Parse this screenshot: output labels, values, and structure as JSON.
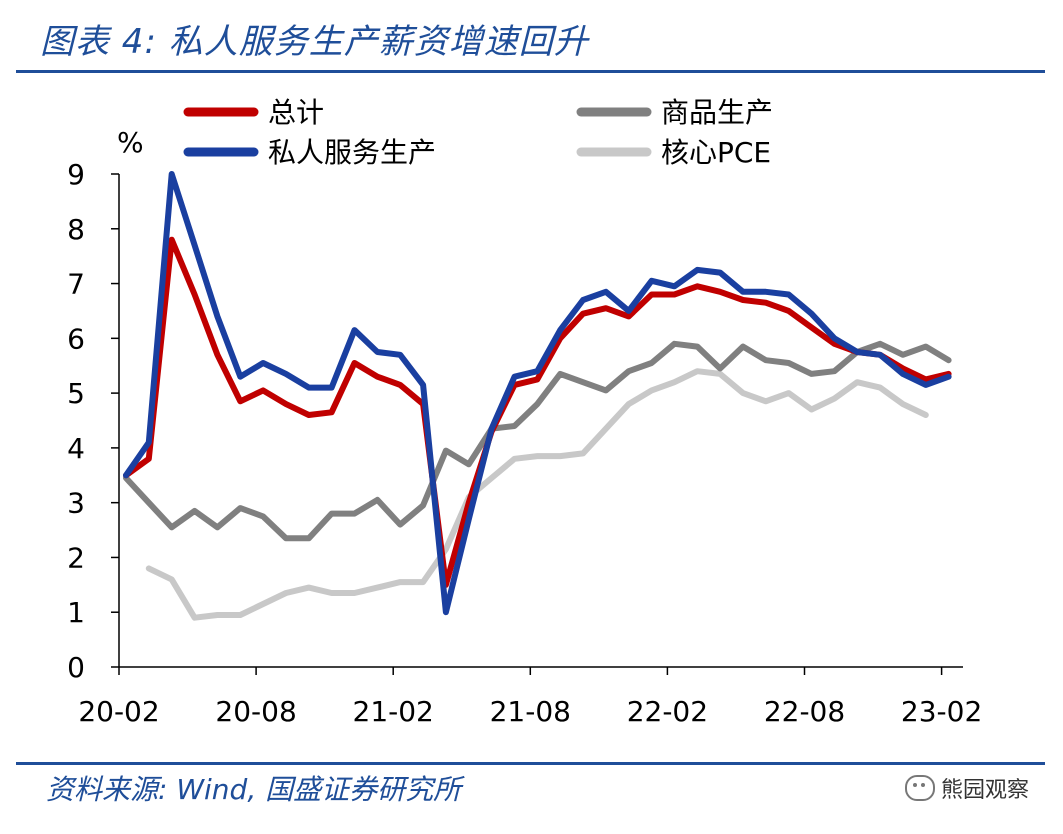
{
  "header": {
    "title": "图表 4:  私人服务生产薪资增速回升"
  },
  "footer": {
    "source": "资料来源:  Wind,  国盛证券研究所",
    "watermark": "熊园观察"
  },
  "chart_data": {
    "type": "line",
    "ylabel": "%",
    "ylim": [
      0,
      9
    ],
    "yticks": [
      "0",
      "1",
      "2",
      "3",
      "4",
      "5",
      "6",
      "7",
      "8",
      "9"
    ],
    "xticks": [
      {
        "label": "20-02",
        "index": 0
      },
      {
        "label": "20-08",
        "index": 6
      },
      {
        "label": "21-02",
        "index": 12
      },
      {
        "label": "21-08",
        "index": 18
      },
      {
        "label": "22-02",
        "index": 24
      },
      {
        "label": "22-08",
        "index": 30
      },
      {
        "label": "23-02",
        "index": 36
      }
    ],
    "grid": false,
    "legend_position": "top",
    "series": [
      {
        "name": "总计",
        "color": "#c00000",
        "values": [
          3.5,
          3.8,
          7.8,
          6.8,
          5.7,
          4.85,
          5.05,
          4.8,
          4.6,
          4.65,
          5.55,
          5.3,
          5.15,
          4.8,
          1.5,
          3.0,
          4.3,
          5.15,
          5.25,
          6.0,
          6.45,
          6.55,
          6.4,
          6.8,
          6.8,
          6.95,
          6.85,
          6.7,
          6.65,
          6.5,
          6.2,
          5.9,
          5.75,
          5.7,
          5.45,
          5.25,
          5.35
        ]
      },
      {
        "name": "商品生产",
        "color": "#808080",
        "values": [
          3.45,
          3.0,
          2.55,
          2.85,
          2.55,
          2.9,
          2.75,
          2.35,
          2.35,
          2.8,
          2.8,
          3.05,
          2.6,
          2.95,
          3.95,
          3.7,
          4.35,
          4.4,
          4.8,
          5.35,
          5.2,
          5.05,
          5.4,
          5.55,
          5.9,
          5.85,
          5.45,
          5.85,
          5.6,
          5.55,
          5.35,
          5.4,
          5.75,
          5.9,
          5.7,
          5.85,
          5.6
        ]
      },
      {
        "name": "私人服务生产",
        "color": "#1a3fa0",
        "values": [
          3.5,
          4.1,
          9.0,
          7.7,
          6.4,
          5.3,
          5.55,
          5.35,
          5.1,
          5.1,
          6.15,
          5.75,
          5.7,
          5.15,
          1.0,
          2.7,
          4.35,
          5.3,
          5.4,
          6.15,
          6.7,
          6.85,
          6.5,
          7.05,
          6.95,
          7.25,
          7.2,
          6.85,
          6.85,
          6.8,
          6.45,
          6.0,
          5.75,
          5.7,
          5.35,
          5.15,
          5.3
        ]
      },
      {
        "name": "核心PCE",
        "color": "#c8c8c8",
        "values": [
          null,
          1.8,
          1.6,
          0.9,
          0.95,
          0.95,
          1.15,
          1.35,
          1.45,
          1.35,
          1.35,
          1.45,
          1.55,
          1.55,
          2.15,
          3.1,
          3.45,
          3.8,
          3.85,
          3.85,
          3.9,
          4.35,
          4.8,
          5.05,
          5.2,
          5.4,
          5.35,
          5.0,
          4.85,
          5.0,
          4.7,
          4.9,
          5.2,
          5.1,
          4.8,
          4.6,
          null
        ]
      }
    ]
  }
}
